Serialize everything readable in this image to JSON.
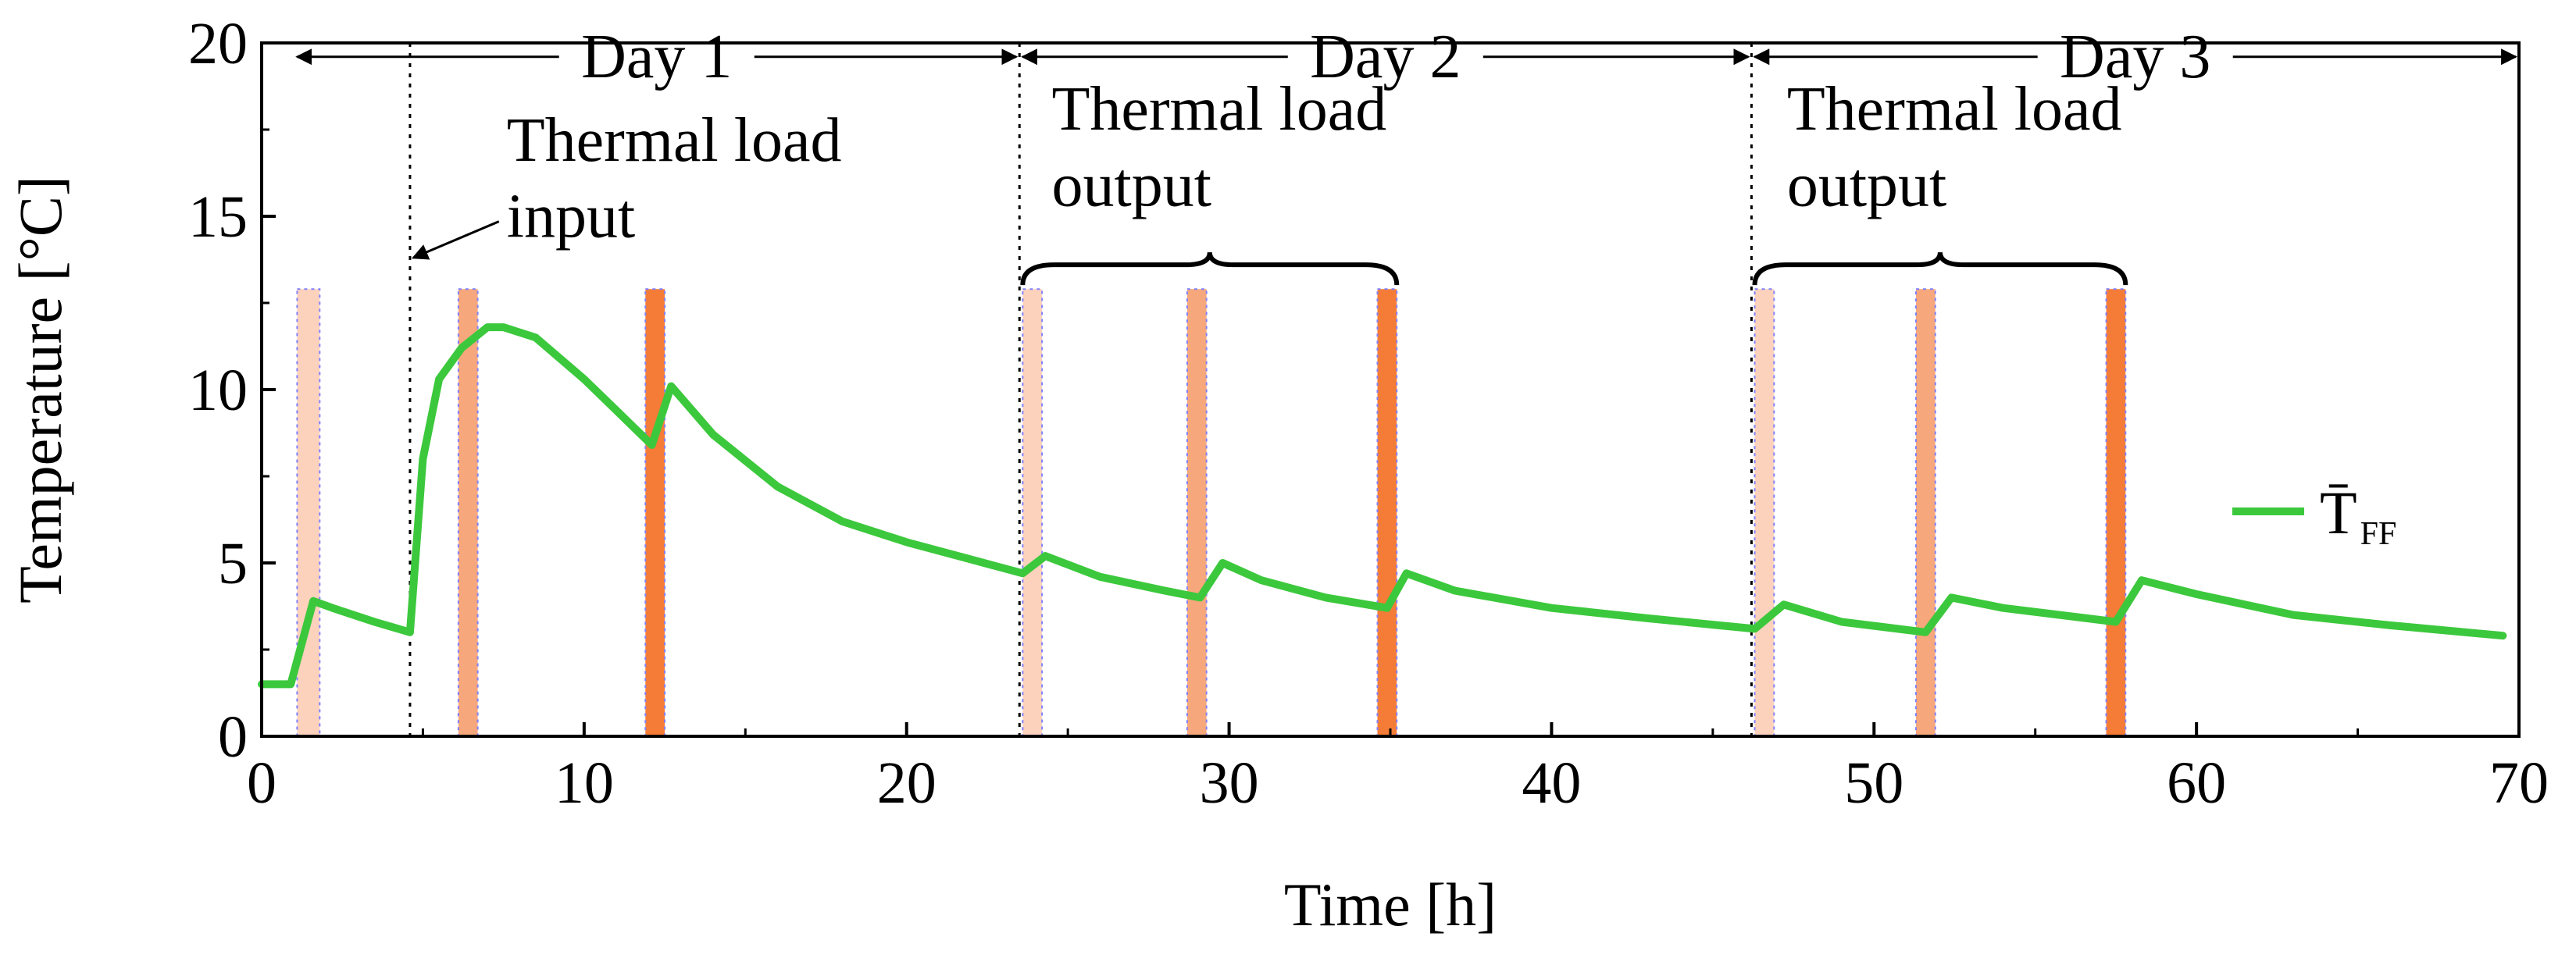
{
  "chart_data": {
    "type": "line",
    "xlabel": "Time [h]",
    "ylabel": "Temperature [°C]",
    "xlim": [
      0,
      70
    ],
    "ylim": [
      0,
      20
    ],
    "xticks": [
      0,
      10,
      20,
      30,
      40,
      50,
      60,
      70
    ],
    "yticks": [
      0,
      5,
      10,
      15,
      20
    ],
    "xtick_labels": [
      "0",
      "10",
      "20",
      "30",
      "40",
      "50",
      "60",
      "70"
    ],
    "ytick_labels": [
      "0",
      "5",
      "10",
      "15",
      "20"
    ],
    "legend_placement": "right",
    "series": [
      {
        "name": "T̄FF",
        "legend_main": "T̄",
        "legend_sub": "FF",
        "color": "#3cc83c",
        "x": [
          0,
          0.9,
          1.6,
          2.2,
          3.5,
          4.6,
          5.0,
          5.5,
          6.2,
          7.0,
          7.5,
          8.5,
          10,
          11,
          12.1,
          12.7,
          14,
          16,
          18,
          20,
          22,
          23.6,
          24.3,
          26,
          28,
          29.1,
          29.8,
          31,
          33,
          34.9,
          35.5,
          37,
          40,
          43,
          46.3,
          47.2,
          49,
          51.6,
          52.4,
          54,
          57.5,
          58.3,
          60,
          63,
          66,
          69.5
        ],
        "y": [
          1.5,
          1.5,
          3.9,
          3.7,
          3.3,
          3.0,
          8.0,
          10.3,
          11.2,
          11.8,
          11.8,
          11.5,
          10.3,
          9.4,
          8.4,
          10.1,
          8.7,
          7.2,
          6.2,
          5.6,
          5.1,
          4.7,
          5.2,
          4.6,
          4.2,
          4.0,
          5.0,
          4.5,
          4.0,
          3.7,
          4.7,
          4.2,
          3.7,
          3.4,
          3.1,
          3.8,
          3.3,
          3.0,
          4.0,
          3.7,
          3.3,
          4.5,
          4.1,
          3.5,
          3.2,
          2.9
        ]
      }
    ],
    "load_bands": [
      {
        "x0": 1.1,
        "x1": 1.8,
        "y_top": 12.9,
        "color": "#fcd2bd"
      },
      {
        "x0": 6.1,
        "x1": 6.7,
        "y_top": 12.9,
        "color": "#f6a77c"
      },
      {
        "x0": 11.9,
        "x1": 12.5,
        "y_top": 12.9,
        "color": "#f47c36"
      },
      {
        "x0": 23.6,
        "x1": 24.2,
        "y_top": 12.9,
        "color": "#fcd2bd"
      },
      {
        "x0": 28.7,
        "x1": 29.3,
        "y_top": 12.9,
        "color": "#f6a77c"
      },
      {
        "x0": 34.6,
        "x1": 35.2,
        "y_top": 12.9,
        "color": "#f47c36"
      },
      {
        "x0": 46.3,
        "x1": 46.9,
        "y_top": 12.9,
        "color": "#fcd2bd"
      },
      {
        "x0": 51.3,
        "x1": 51.9,
        "y_top": 12.9,
        "color": "#f6a77c"
      },
      {
        "x0": 57.2,
        "x1": 57.8,
        "y_top": 12.9,
        "color": "#f47c36"
      }
    ],
    "markers": [
      {
        "x": 4.6,
        "label": "input-start"
      },
      {
        "x": 23.5,
        "label": "day-2-start"
      },
      {
        "x": 46.2,
        "label": "day-3-start"
      },
      {
        "x": 70,
        "label": "end"
      }
    ],
    "days": [
      {
        "label": "Day 1",
        "x0": 1.0,
        "x1": 23.5
      },
      {
        "label": "Day 2",
        "x0": 23.5,
        "x1": 46.2
      },
      {
        "label": "Day 3",
        "x0": 46.2,
        "x1": 70
      }
    ],
    "annotations": {
      "input": {
        "line1": "Thermal load",
        "line2": "input",
        "x": 7.6,
        "y_line1": 16.6,
        "y_line2": 14.4
      },
      "output_day2": {
        "line1": "Thermal load",
        "line2": "output",
        "x": 24.5,
        "y_line1": 17.5,
        "y_line2": 15.3,
        "brace_x0": 23.6,
        "brace_x1": 35.2,
        "brace_y": 13.6
      },
      "output_day3": {
        "line1": "Thermal load",
        "line2": "output",
        "x": 47.3,
        "y_line1": 17.5,
        "y_line2": 15.3,
        "brace_x0": 46.3,
        "brace_x1": 57.8,
        "brace_y": 13.6
      }
    }
  }
}
